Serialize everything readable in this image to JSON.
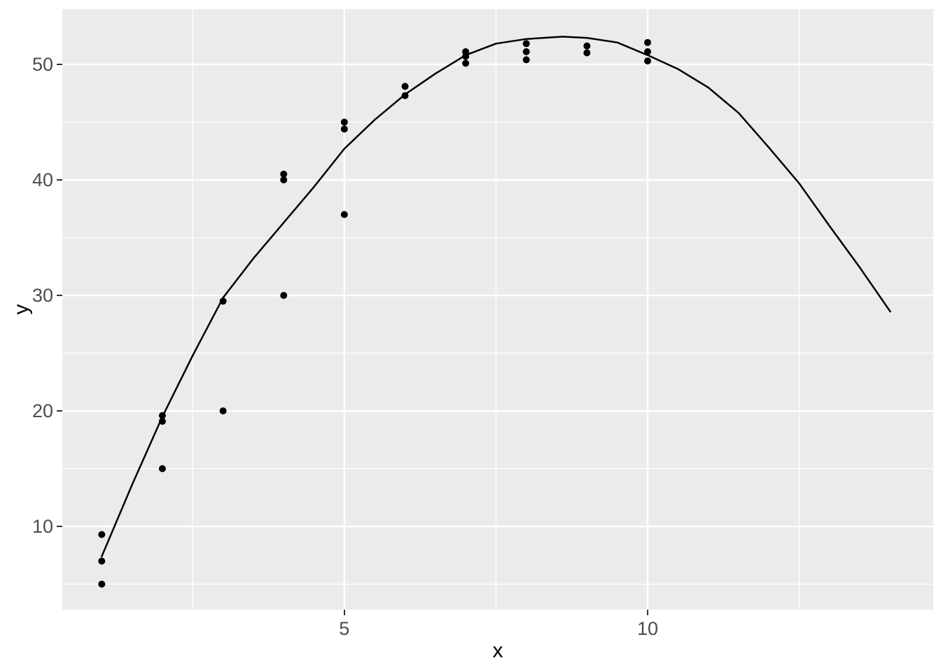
{
  "style": {
    "figure_background": "#FFFFFF",
    "panel_background": "#EBEBEB",
    "grid_color": "#FFFFFF",
    "point_color": "#000000",
    "line_color": "#000000",
    "tick_mark_color": "#333333",
    "tick_label_color": "#4D4D4D",
    "axis_title_color": "#000000"
  },
  "chart_data": {
    "type": "scatter",
    "title": "",
    "xlabel": "x",
    "ylabel": "y",
    "xlim": [
      0.35,
      14.71
    ],
    "ylim": [
      2.79,
      54.79
    ],
    "x_ticks": [
      5,
      10
    ],
    "x_tick_labels": [
      "5",
      "10"
    ],
    "x_minor_ticks": [
      2.5,
      7.5,
      12.5
    ],
    "y_ticks": [
      10,
      20,
      30,
      40,
      50
    ],
    "y_tick_labels": [
      "10",
      "20",
      "30",
      "40",
      "50"
    ],
    "y_minor_ticks": [
      5,
      15,
      25,
      35,
      45
    ],
    "grid": "major+minor",
    "legend": "none",
    "points": [
      [
        1,
        9.3
      ],
      [
        1,
        7.0
      ],
      [
        1,
        5.0
      ],
      [
        2,
        19.6
      ],
      [
        2,
        19.1
      ],
      [
        2,
        15.0
      ],
      [
        3,
        29.5
      ],
      [
        3,
        20.0
      ],
      [
        4,
        40.5
      ],
      [
        4,
        40.0
      ],
      [
        4,
        30.0
      ],
      [
        5,
        45.0
      ],
      [
        5,
        44.4
      ],
      [
        5,
        37.0
      ],
      [
        6,
        48.1
      ],
      [
        6,
        47.3
      ],
      [
        7,
        51.1
      ],
      [
        7,
        50.7
      ],
      [
        7,
        50.1
      ],
      [
        8,
        51.8
      ],
      [
        8,
        51.1
      ],
      [
        8,
        50.4
      ],
      [
        9,
        51.6
      ],
      [
        9,
        51.0
      ],
      [
        10,
        51.9
      ],
      [
        10,
        51.1
      ],
      [
        10,
        50.3
      ]
    ],
    "smooth_line": [
      [
        1,
        7.4
      ],
      [
        1.5,
        13.6
      ],
      [
        2,
        19.5
      ],
      [
        2.5,
        24.8
      ],
      [
        3,
        29.8
      ],
      [
        3.5,
        33.2
      ],
      [
        4,
        36.3
      ],
      [
        4.5,
        39.4
      ],
      [
        5,
        42.7
      ],
      [
        5.5,
        45.2
      ],
      [
        6,
        47.4
      ],
      [
        6.5,
        49.2
      ],
      [
        7,
        50.8
      ],
      [
        7.5,
        51.8
      ],
      [
        8,
        52.2
      ],
      [
        8.6,
        52.4
      ],
      [
        9,
        52.3
      ],
      [
        9.5,
        51.9
      ],
      [
        10,
        50.8
      ],
      [
        10.5,
        49.6
      ],
      [
        11,
        48.0
      ],
      [
        11.5,
        45.8
      ],
      [
        12,
        42.8
      ],
      [
        12.5,
        39.7
      ],
      [
        13,
        36.0
      ],
      [
        13.5,
        32.4
      ],
      [
        14,
        28.6
      ]
    ]
  }
}
